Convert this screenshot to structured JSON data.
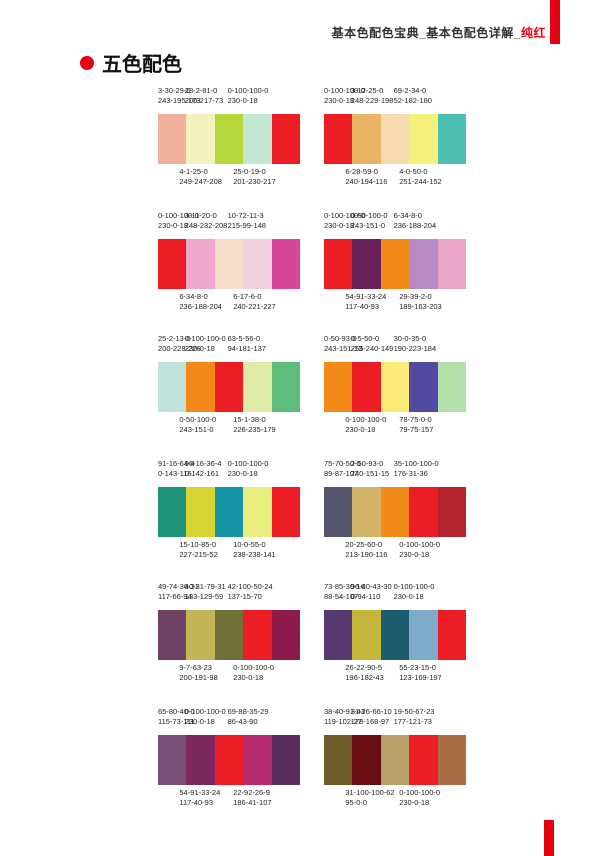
{
  "header": {
    "text": "基本色配色宝典_基本色配色详解_",
    "accent": "纯红"
  },
  "title": "五色配色",
  "palettes": [
    {
      "colors": [
        "#f2b09c",
        "#f3f1be",
        "#b6d739",
        "#c2e8d2",
        "#ec1d24"
      ],
      "top": [
        {
          "cmyk": "3-30-29-0",
          "rgb": "243-195-173"
        },
        {
          "cmyk": "28-2-81-0",
          "rgb": "200-217-73"
        },
        {
          "cmyk": "0-100-100-0",
          "rgb": "230-0-18"
        }
      ],
      "bottom": [
        {
          "cmyk": "4-1-25-0",
          "rgb": "249-247-208"
        },
        {
          "cmyk": "25-0-19-0",
          "rgb": "201-230-217"
        }
      ]
    },
    {
      "colors": [
        "#ec1d24",
        "#e9b366",
        "#f5dcb0",
        "#f3f17a",
        "#4dbfb1"
      ],
      "top": [
        {
          "cmyk": "0-100-100-0",
          "rgb": "230-0-18"
        },
        {
          "cmyk": "3-12-25-0",
          "rgb": "248-229-198"
        },
        {
          "cmyk": "69-2-34-0",
          "rgb": "52-182-180"
        }
      ],
      "bottom": [
        {
          "cmyk": "6-28-59-0",
          "rgb": "240-194-116"
        },
        {
          "cmyk": "4-0-50-0",
          "rgb": "251-244-152"
        }
      ]
    },
    {
      "colors": [
        "#ec1d24",
        "#eea8cc",
        "#f5dcc6",
        "#efd1df",
        "#d74798"
      ],
      "top": [
        {
          "cmyk": "0-100-100-0",
          "rgb": "230-0-18"
        },
        {
          "cmyk": "3-11-20-0",
          "rgb": "248-232-208"
        },
        {
          "cmyk": "10-72-11-3",
          "rgb": "215-99-148"
        }
      ],
      "bottom": [
        {
          "cmyk": "6-34-8-0",
          "rgb": "236-188-204"
        },
        {
          "cmyk": "6-17-6-0",
          "rgb": "240-221-227"
        }
      ]
    },
    {
      "colors": [
        "#ec1d24",
        "#6a2157",
        "#f28a1a",
        "#b98ac6",
        "#eaa6c8"
      ],
      "top": [
        {
          "cmyk": "0-100-100-0",
          "rgb": "230-0-18"
        },
        {
          "cmyk": "0-50-100-0",
          "rgb": "243-151-0"
        },
        {
          "cmyk": "6-34-8-0",
          "rgb": "236-188-204"
        }
      ],
      "bottom": [
        {
          "cmyk": "54-91-33-24",
          "rgb": "117-40-93"
        },
        {
          "cmyk": "29-39-2-0",
          "rgb": "189-163-203"
        }
      ]
    },
    {
      "colors": [
        "#bfe3dc",
        "#f28a1a",
        "#ec1d24",
        "#dfeaa6",
        "#5cbd7d"
      ],
      "top": [
        {
          "cmyk": "25-2-13-0",
          "rgb": "200-228-226"
        },
        {
          "cmyk": "0-100-100-0",
          "rgb": "230-0-18"
        },
        {
          "cmyk": "63-5-56-0",
          "rgb": "94-181-137"
        }
      ],
      "bottom": [
        {
          "cmyk": "0-50-100-0",
          "rgb": "243-151-0"
        },
        {
          "cmyk": "15-1-38-0",
          "rgb": "226-235-179"
        }
      ]
    },
    {
      "colors": [
        "#f28a1a",
        "#ec1d24",
        "#fbe978",
        "#514aa3",
        "#b3e0aa"
      ],
      "top": [
        {
          "cmyk": "0-50-93-0",
          "rgb": "243-151-13"
        },
        {
          "cmyk": "0-5-50-0",
          "rgb": "255-240-149"
        },
        {
          "cmyk": "30-0-35-0",
          "rgb": "190-223-184"
        }
      ],
      "bottom": [
        {
          "cmyk": "0-100-100-0",
          "rgb": "230-0-18"
        },
        {
          "cmyk": "78-75-0-0",
          "rgb": "79-75-157"
        }
      ]
    },
    {
      "colors": [
        "#1e947a",
        "#d7d434",
        "#1795a5",
        "#e8ef7c",
        "#ec1d24"
      ],
      "top": [
        {
          "cmyk": "91-16-64-4",
          "rgb": "0-143-116"
        },
        {
          "cmyk": "96-16-36-4",
          "rgb": "0-142-161"
        },
        {
          "cmyk": "0-100-100-0",
          "rgb": "230-0-18"
        }
      ],
      "bottom": [
        {
          "cmyk": "15-10-85-0",
          "rgb": "227-215-52"
        },
        {
          "cmyk": "10-0-55-0",
          "rgb": "238-238-141"
        }
      ]
    },
    {
      "colors": [
        "#55566c",
        "#d3b367",
        "#f28a1a",
        "#ec1d24",
        "#b5242d"
      ],
      "top": [
        {
          "cmyk": "75-70-50-0",
          "rgb": "89-87-107"
        },
        {
          "cmyk": "2-50-93-0",
          "rgb": "240-151-15"
        },
        {
          "cmyk": "35-100-100-0",
          "rgb": "176-31-36"
        }
      ],
      "bottom": [
        {
          "cmyk": "20-25-60-0",
          "rgb": "213-190-116"
        },
        {
          "cmyk": "0-100-100-0",
          "rgb": "230-0-18"
        }
      ]
    },
    {
      "colors": [
        "#6e4062",
        "#c1b459",
        "#707039",
        "#ec1d24",
        "#8d1a4c"
      ],
      "top": [
        {
          "cmyk": "49-74-36-31",
          "rgb": "117-66-94"
        },
        {
          "cmyk": "40-31-79-31",
          "rgb": "133-129-59"
        },
        {
          "cmyk": "42-100-50-24",
          "rgb": "137-15-70"
        }
      ],
      "bottom": [
        {
          "cmyk": "9-7-63-23",
          "rgb": "200-191-98"
        },
        {
          "cmyk": "0-100-100-0",
          "rgb": "230-0-18"
        }
      ]
    },
    {
      "colors": [
        "#583a72",
        "#c4b53a",
        "#1b5c6e",
        "#7eabc9",
        "#ec1d24"
      ],
      "top": [
        {
          "cmyk": "73-85-30-16",
          "rgb": "88-54-107"
        },
        {
          "cmyk": "96-40-43-30",
          "rgb": "0-94-110"
        },
        {
          "cmyk": "0-100-100-0",
          "rgb": "230-0-18"
        }
      ],
      "bottom": [
        {
          "cmyk": "26-22-90-5",
          "rgb": "196-182-43"
        },
        {
          "cmyk": "55-23-15-0",
          "rgb": "123-169-197"
        }
      ]
    },
    {
      "colors": [
        "#7a4f7a",
        "#7a285d",
        "#ec1d24",
        "#b62a6f",
        "#5a2c5c"
      ],
      "top": [
        {
          "cmyk": "65-80-40-0",
          "rgb": "115-73-111"
        },
        {
          "cmyk": "0-100-100-0",
          "rgb": "230-0-18"
        },
        {
          "cmyk": "69-88-35-29",
          "rgb": "86-43-90"
        }
      ],
      "bottom": [
        {
          "cmyk": "54-91-33-24",
          "rgb": "117-40-93"
        },
        {
          "cmyk": "22-92-26-9",
          "rgb": "186-41-107"
        }
      ]
    },
    {
      "colors": [
        "#6f5c2b",
        "#680f16",
        "#b8a06a",
        "#ec1d24",
        "#ac6c46"
      ],
      "top": [
        {
          "cmyk": "38-40-91-43",
          "rgb": "119-102-27"
        },
        {
          "cmyk": "31-26-66-10",
          "rgb": "178-168-97"
        },
        {
          "cmyk": "19-50-67-23",
          "rgb": "177-121-73"
        }
      ],
      "bottom": [
        {
          "cmyk": "31-100-100-62",
          "rgb": "95-0-0"
        },
        {
          "cmyk": "0-100-100-0",
          "rgb": "230-0-18"
        }
      ]
    }
  ]
}
